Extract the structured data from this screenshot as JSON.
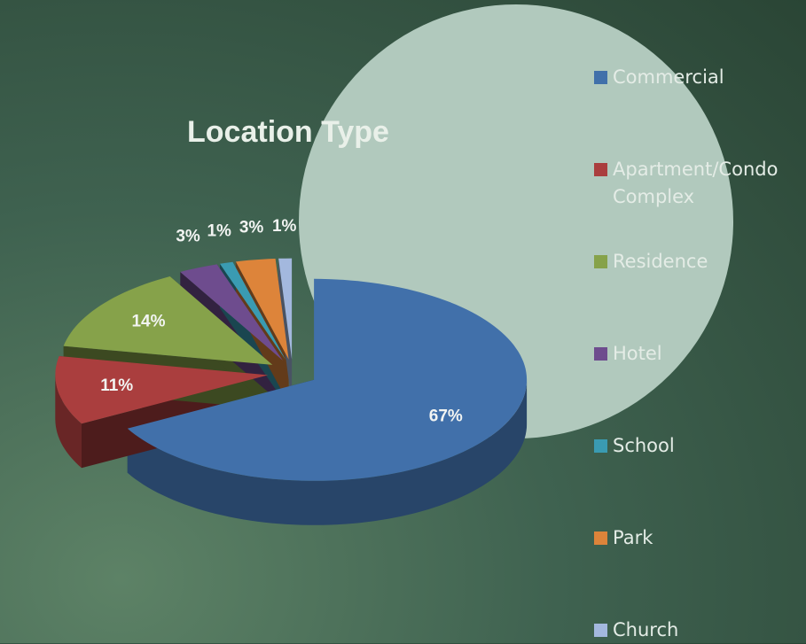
{
  "chart_data": {
    "type": "pie3d",
    "title": "Location Type",
    "categories": [
      "Commercial",
      "Apartment/Condo Complex",
      "Residence",
      "Hotel",
      "School",
      "Park",
      "Church"
    ],
    "values": [
      67,
      11,
      14,
      3,
      1,
      3,
      1
    ],
    "value_labels": [
      "67%",
      "11%",
      "14%",
      "3%",
      "1%",
      "3%",
      "1%"
    ],
    "colors": [
      "#4170aa",
      "#aa3e3e",
      "#86a24a",
      "#6e4c8e",
      "#3a9bb2",
      "#dd843a",
      "#a3b8de"
    ],
    "legend": "right"
  }
}
